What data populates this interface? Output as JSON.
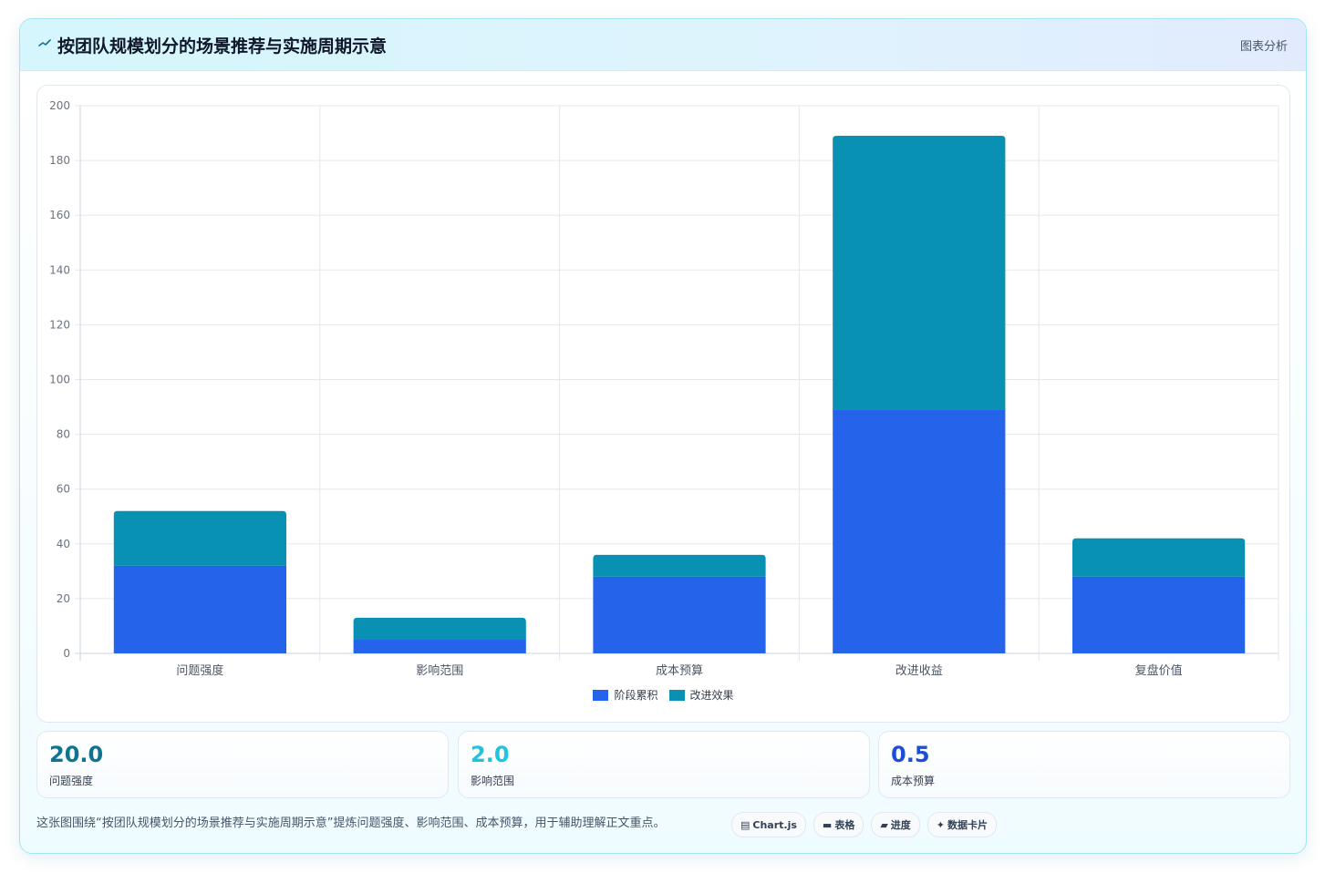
{
  "header": {
    "title": "按团队规模划分的场景推荐与实施周期示意",
    "action_label": "图表分析",
    "icon": "trend-line-icon"
  },
  "chart_data": {
    "type": "bar",
    "stacked": true,
    "categories": [
      "问题强度",
      "影响范围",
      "成本预算",
      "改进收益",
      "复盘价值"
    ],
    "series": [
      {
        "name": "阶段累积",
        "color": "#2563eb",
        "values": [
          32,
          5,
          28,
          89,
          28
        ]
      },
      {
        "name": "改进效果",
        "color": "#0891b2",
        "values": [
          20,
          8,
          8,
          100,
          14
        ]
      }
    ],
    "ylim": [
      0,
      200
    ],
    "y_ticks": [
      0,
      20,
      40,
      60,
      80,
      100,
      120,
      140,
      160,
      180,
      200
    ],
    "grid": true,
    "legend_position": "bottom"
  },
  "stats": [
    {
      "value": "20.0",
      "label": "问题强度",
      "color": "#0e7490"
    },
    {
      "value": "2.0",
      "label": "影响范围",
      "color": "#22c3dd"
    },
    {
      "value": "0.5",
      "label": "成本预算",
      "color": "#1d4ed8"
    }
  ],
  "caption": "这张图围绕“按团队规模划分的场景推荐与实施周期示意”提炼问题强度、影响范围、成本预算，用于辅助理解正文重点。",
  "chips": [
    {
      "icon": "chart-icon",
      "glyph": "▤",
      "label": "Chart.js"
    },
    {
      "icon": "table-icon",
      "glyph": "▬",
      "label": "表格"
    },
    {
      "icon": "progress-icon",
      "glyph": "▰",
      "label": "进度"
    },
    {
      "icon": "sparkle-icon",
      "glyph": "✦",
      "label": "数据卡片"
    }
  ]
}
